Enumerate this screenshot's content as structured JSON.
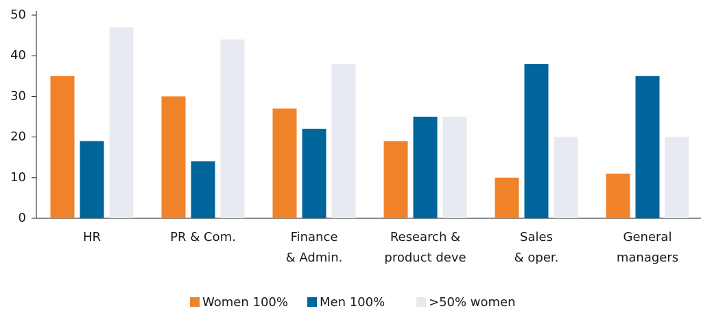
{
  "chart_data": {
    "type": "bar",
    "categories": [
      "HR",
      "PR & Com.",
      "Finance\n& Admin.",
      "Research &\nproduct deve",
      "Sales\n& oper.",
      "General\nmanagers"
    ],
    "series": [
      {
        "name": "Women 100%",
        "color": "#f0822a",
        "values": [
          35,
          30,
          27,
          19,
          10,
          11
        ]
      },
      {
        "name": "Men 100%",
        "color": "#00659a",
        "values": [
          19,
          14,
          22,
          25,
          38,
          35
        ]
      },
      {
        "name": ">50% women",
        "color": "#e8eaf2",
        "values": [
          47,
          44,
          38,
          25,
          20,
          20
        ]
      }
    ],
    "ylim": [
      0,
      50
    ],
    "yticks": [
      0,
      10,
      20,
      30,
      40,
      50
    ],
    "grid": false
  }
}
